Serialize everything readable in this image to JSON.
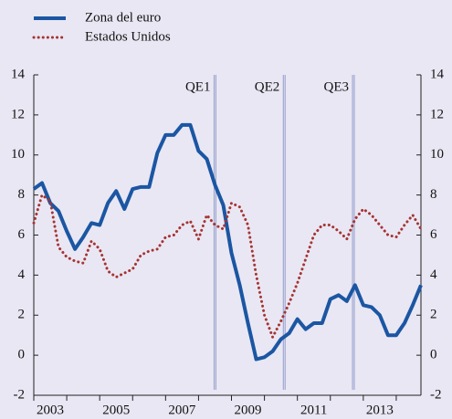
{
  "chart_data": {
    "type": "line",
    "x": [
      2003,
      2003.25,
      2003.5,
      2003.75,
      2004,
      2004.25,
      2004.5,
      2004.75,
      2005,
      2005.25,
      2005.5,
      2005.75,
      2006,
      2006.25,
      2006.5,
      2006.75,
      2007,
      2007.25,
      2007.5,
      2007.75,
      2008,
      2008.25,
      2008.5,
      2008.75,
      2009,
      2009.25,
      2009.5,
      2009.75,
      2010,
      2010.25,
      2010.5,
      2010.75,
      2011,
      2011.25,
      2011.5,
      2011.75,
      2012,
      2012.25,
      2012.5,
      2012.75,
      2013,
      2013.25,
      2013.5,
      2013.75,
      2014,
      2014.25,
      2014.5,
      2014.75
    ],
    "series": [
      {
        "name": "Zona del euro",
        "color": "#1b56a3",
        "style": "solid",
        "values": [
          8.3,
          8.6,
          7.6,
          7.2,
          6.2,
          5.3,
          5.9,
          6.6,
          6.5,
          7.6,
          8.2,
          7.3,
          8.3,
          8.4,
          8.4,
          10.1,
          11.0,
          11.0,
          11.5,
          11.5,
          10.2,
          9.8,
          8.5,
          7.5,
          5.1,
          3.5,
          1.6,
          -0.2,
          -0.1,
          0.2,
          0.8,
          1.1,
          1.8,
          1.3,
          1.6,
          1.6,
          2.8,
          3.0,
          2.7,
          3.5,
          2.5,
          2.4,
          2.0,
          1.0,
          1.0,
          1.6,
          2.5,
          3.5
        ]
      },
      {
        "name": "Estados Unidos",
        "color": "#a53434",
        "style": "dotted",
        "values": [
          6.6,
          8.0,
          7.7,
          5.4,
          4.9,
          4.7,
          4.6,
          5.7,
          5.3,
          4.2,
          3.9,
          4.1,
          4.3,
          5.0,
          5.2,
          5.3,
          5.9,
          6.0,
          6.5,
          6.7,
          5.8,
          7.0,
          6.5,
          6.3,
          7.6,
          7.4,
          6.5,
          4.0,
          2.0,
          0.9,
          1.7,
          2.6,
          3.6,
          4.8,
          6.0,
          6.5,
          6.5,
          6.2,
          5.8,
          6.8,
          7.3,
          7.0,
          6.5,
          6.0,
          5.9,
          6.5,
          7.0,
          6.3
        ]
      }
    ],
    "xlim": [
      2003,
      2014.75
    ],
    "xticks": [
      2003,
      2004,
      2005,
      2006,
      2007,
      2008,
      2009,
      2010,
      2011,
      2012,
      2013,
      2014
    ],
    "xtick_labels": [
      {
        "value": 2003.5,
        "label": "2003"
      },
      {
        "value": 2005.5,
        "label": "2005"
      },
      {
        "value": 2007.5,
        "label": "2007"
      },
      {
        "value": 2009.5,
        "label": "2009"
      },
      {
        "value": 2011.5,
        "label": "2011"
      },
      {
        "value": 2013.5,
        "label": "2013"
      }
    ],
    "ylim": [
      -2,
      14
    ],
    "yticks": [
      -2,
      0,
      2,
      4,
      6,
      8,
      10,
      12,
      14
    ],
    "annotations": [
      {
        "label": "QE1",
        "x": 2008.5
      },
      {
        "label": "QE2",
        "x": 2010.6
      },
      {
        "label": "QE3",
        "x": 2012.7
      }
    ],
    "legend": "top-left"
  }
}
